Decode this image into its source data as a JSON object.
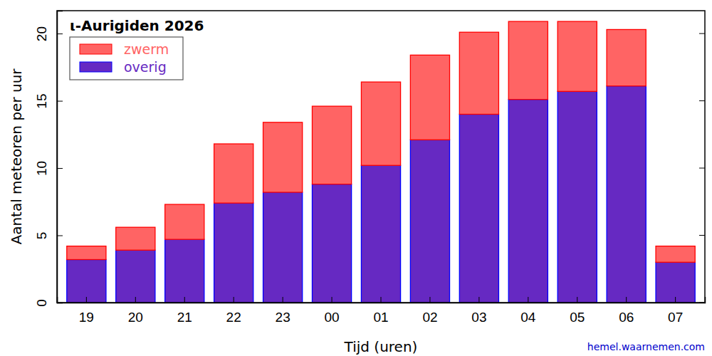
{
  "chart_data": {
    "type": "bar",
    "stacked": true,
    "title": "ι-Aurigiden 2026",
    "x_label": "Tijd (uren)",
    "y_label": "Aantal meteoren per uur",
    "annotation": "hemel.waarnemen.com",
    "categories": [
      "19",
      "20",
      "21",
      "22",
      "23",
      "00",
      "01",
      "02",
      "03",
      "04",
      "05",
      "06",
      "07"
    ],
    "series": [
      {
        "name": "overig",
        "color": "#6629c2",
        "values": [
          3.2,
          3.9,
          4.7,
          7.4,
          8.2,
          8.8,
          10.2,
          12.1,
          14.0,
          15.1,
          15.7,
          16.1,
          3.0
        ]
      },
      {
        "name": "zwerm",
        "color": "#ff6464",
        "values": [
          1.0,
          1.7,
          2.6,
          4.4,
          5.2,
          5.8,
          6.2,
          6.3,
          6.1,
          5.8,
          5.2,
          4.2,
          1.2
        ]
      }
    ],
    "ylim": [
      0,
      21.7
    ],
    "yticks": [
      0,
      5,
      10,
      15,
      20
    ],
    "legend": "upper left"
  }
}
